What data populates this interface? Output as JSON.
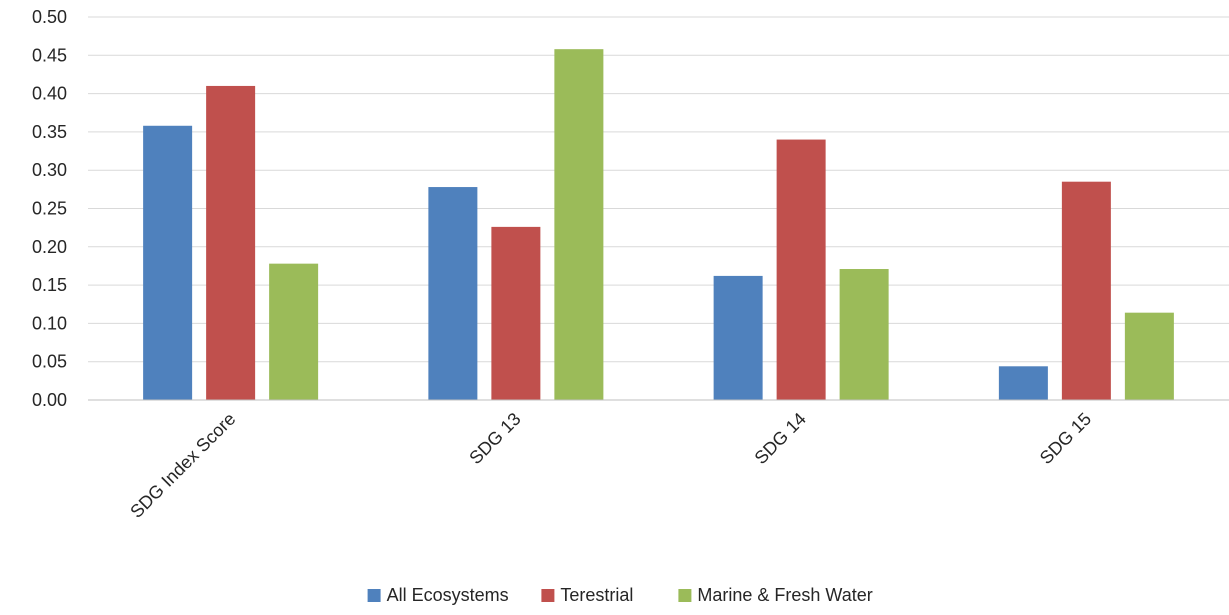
{
  "chart_data": {
    "type": "bar",
    "title": "",
    "xlabel": "",
    "ylabel": "",
    "categories": [
      "SDG Index Score",
      "SDG 13",
      "SDG 14",
      "SDG 15"
    ],
    "series": [
      {
        "name": "All Ecosystems",
        "color": "#4f81bd",
        "values": [
          0.358,
          0.278,
          0.162,
          0.044
        ]
      },
      {
        "name": "Terestrial",
        "color": "#c0504d",
        "values": [
          0.41,
          0.226,
          0.34,
          0.285
        ]
      },
      {
        "name": "Marine & Fresh Water",
        "color": "#9bbb59",
        "values": [
          0.178,
          0.458,
          0.171,
          0.114
        ]
      }
    ],
    "ylim": [
      0,
      0.5
    ],
    "yticks": [
      "0.00",
      "0.05",
      "0.10",
      "0.15",
      "0.20",
      "0.25",
      "0.30",
      "0.35",
      "0.40",
      "0.45",
      "0.50"
    ],
    "grid": true,
    "legend_position": "bottom",
    "category_label_rotation": "diagonal"
  }
}
